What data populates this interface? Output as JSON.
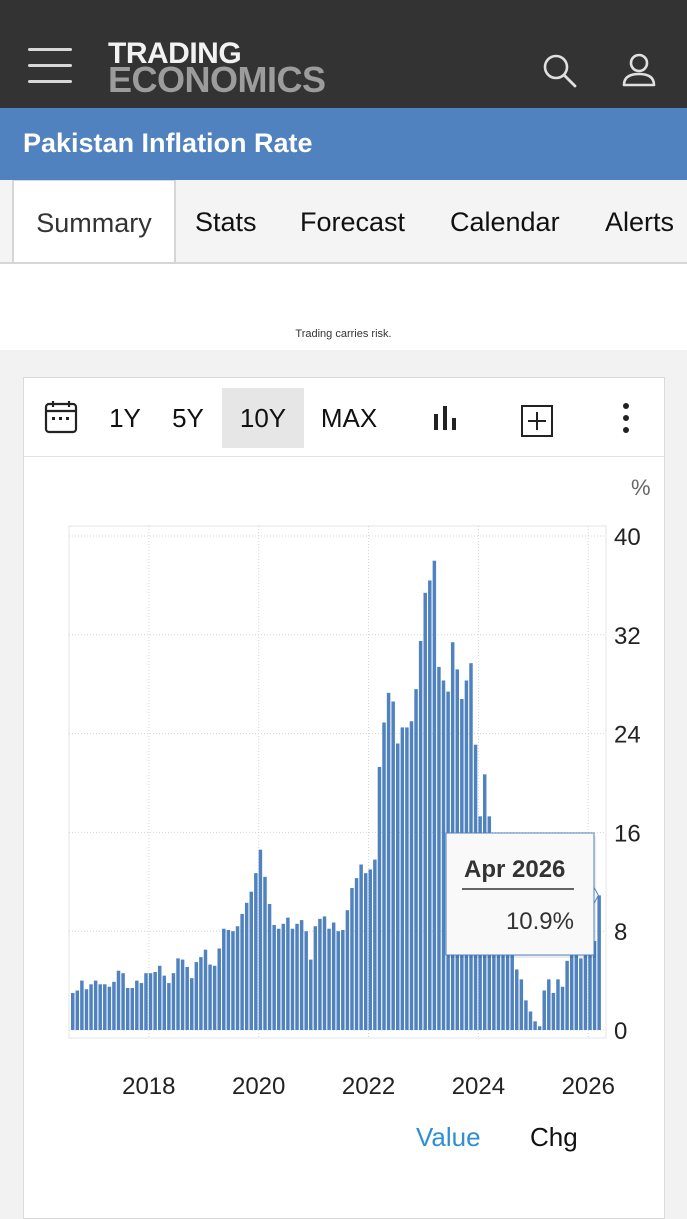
{
  "header": {
    "logo_line1": "TRADING",
    "logo_line2": "ECONOMICS",
    "menu_icon": "hamburger-menu-icon",
    "search_icon": "search-icon",
    "user_icon": "user-icon"
  },
  "page": {
    "title": "Pakistan Inflation Rate"
  },
  "tabs": [
    {
      "label": "Summary",
      "active": true
    },
    {
      "label": "Stats",
      "active": false
    },
    {
      "label": "Forecast",
      "active": false
    },
    {
      "label": "Calendar",
      "active": false
    },
    {
      "label": "Alerts",
      "active": false
    }
  ],
  "ad": {
    "disclaimer": "Trading carries risk."
  },
  "toolbar": {
    "calendar_icon": "calendar-icon",
    "ranges": [
      "1Y",
      "5Y",
      "10Y",
      "MAX"
    ],
    "selected_range": "10Y",
    "bar_chart_icon": "bar-chart-icon",
    "add_icon": "plus-square-icon",
    "more_icon": "more-vertical-icon"
  },
  "legend": {
    "value_label": "Value",
    "chg_label": "Chg",
    "active": "Value"
  },
  "colors": {
    "bar": "#4f82bf",
    "header": "#333333",
    "titlebar": "#4f82bf",
    "legend_active": "#2e8fd6"
  },
  "chart_data": {
    "type": "bar",
    "unit_label": "%",
    "y_ticks": [
      0,
      8,
      16,
      24,
      32,
      40
    ],
    "ylim": [
      0,
      40
    ],
    "x_ticks": [
      "2018",
      "2020",
      "2022",
      "2024",
      "2026"
    ],
    "x_start": "2016-08",
    "x_end": "2026-04",
    "grid": true,
    "y_axis_side": "right",
    "tooltip": {
      "label": "Apr 2026",
      "value": "10.9%"
    },
    "values": [
      3.0,
      3.2,
      4.0,
      3.3,
      3.7,
      4.0,
      3.7,
      3.7,
      3.5,
      3.9,
      4.8,
      4.6,
      3.4,
      3.4,
      4.0,
      3.8,
      4.6,
      4.6,
      4.7,
      5.2,
      4.4,
      3.8,
      4.6,
      5.8,
      5.7,
      5.1,
      4.2,
      5.5,
      5.9,
      6.5,
      5.3,
      5.2,
      6.6,
      8.2,
      8.1,
      8.0,
      8.4,
      9.4,
      10.3,
      11.2,
      12.7,
      14.6,
      12.4,
      10.2,
      8.5,
      8.2,
      8.6,
      9.1,
      8.2,
      8.6,
      8.9,
      8.0,
      5.7,
      8.4,
      9.0,
      9.2,
      8.2,
      8.7,
      8.0,
      8.1,
      9.7,
      11.5,
      12.3,
      13.4,
      12.7,
      13.0,
      13.8,
      21.3,
      24.9,
      27.3,
      26.6,
      23.2,
      24.5,
      24.5,
      25.0,
      27.6,
      31.5,
      35.4,
      36.4,
      38.0,
      29.4,
      28.3,
      27.4,
      31.4,
      29.2,
      26.8,
      28.3,
      29.7,
      23.1,
      17.3,
      20.7,
      17.3,
      12.6,
      11.1,
      12.3,
      9.6,
      6.9,
      4.9,
      4.1,
      2.4,
      1.5,
      0.7,
      0.3,
      3.2,
      4.1,
      3.0,
      4.1,
      3.5,
      5.6,
      6.2,
      6.1,
      5.8,
      6.8,
      7.0,
      7.2,
      10.9
    ]
  }
}
